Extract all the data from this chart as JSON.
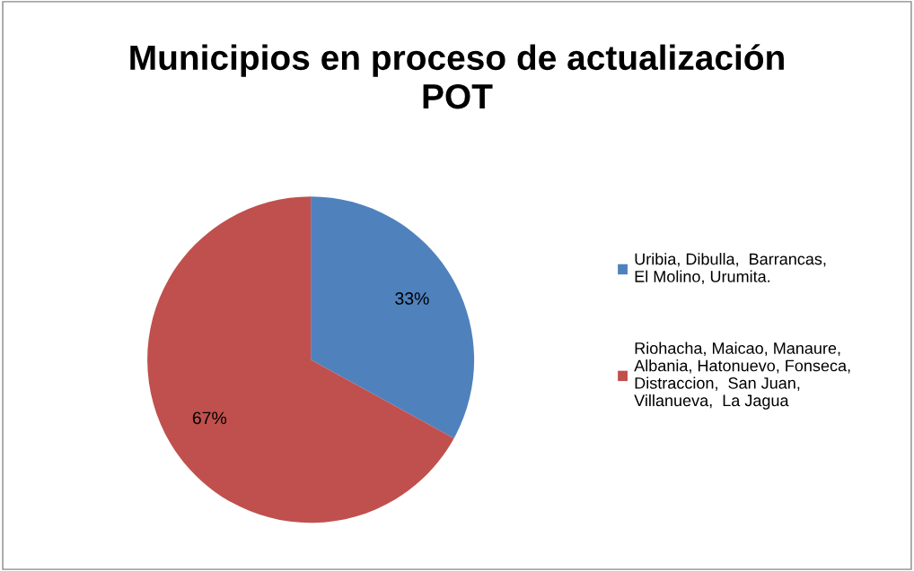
{
  "chart_data": {
    "type": "pie",
    "title": "Municipios en proceso de actualización POT",
    "categories": [
      "Uribia, Dibulla,  Barrancas, El Molino, Urumita.",
      "Riohacha, Maicao, Manaure, Albania, Hatonuevo, Fonseca, Distraccion,  San Juan, Villanueva,  La Jagua"
    ],
    "values": [
      33,
      67
    ],
    "colors": [
      "#4f81bd",
      "#c0504d"
    ],
    "value_labels": [
      "33%",
      "67%"
    ],
    "legend": "right"
  }
}
